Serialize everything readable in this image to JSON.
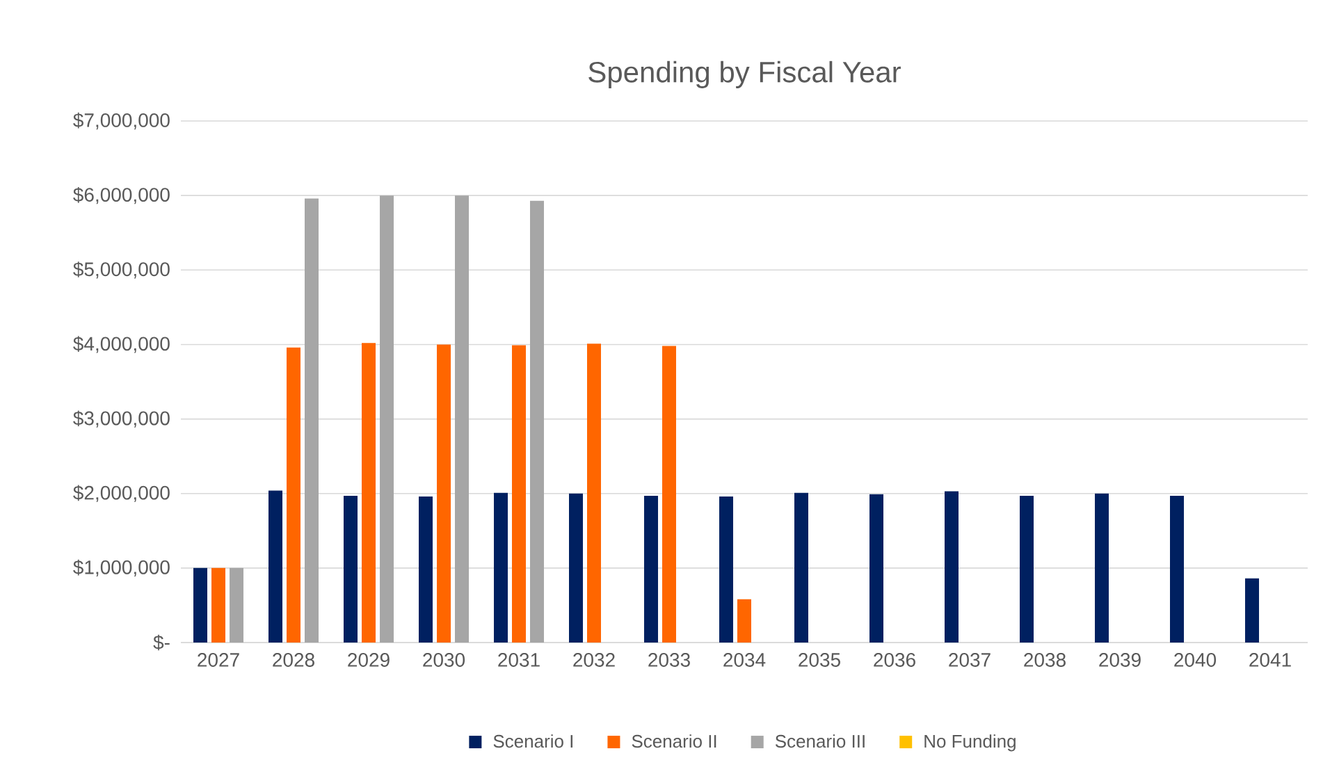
{
  "chart_data": {
    "type": "bar",
    "title": "Spending by Fiscal Year",
    "categories": [
      "2027",
      "2028",
      "2029",
      "2030",
      "2031",
      "2032",
      "2033",
      "2034",
      "2035",
      "2036",
      "2037",
      "2038",
      "2039",
      "2040",
      "2041"
    ],
    "series": [
      {
        "name": "Scenario I",
        "color": "#002060",
        "values": [
          1000000,
          2040000,
          1970000,
          1960000,
          2010000,
          2000000,
          1970000,
          1960000,
          2010000,
          1990000,
          2030000,
          1970000,
          2000000,
          1970000,
          860000
        ]
      },
      {
        "name": "Scenario II",
        "color": "#ff6600",
        "values": [
          1000000,
          3960000,
          4020000,
          4000000,
          3990000,
          4010000,
          3980000,
          580000,
          null,
          null,
          null,
          null,
          null,
          null,
          null
        ]
      },
      {
        "name": "Scenario III",
        "color": "#a6a6a6",
        "values": [
          1000000,
          5960000,
          6000000,
          6000000,
          5930000,
          null,
          null,
          null,
          null,
          null,
          null,
          null,
          null,
          null,
          null
        ]
      },
      {
        "name": "No Funding",
        "color": "#ffc000",
        "values": [
          null,
          null,
          null,
          null,
          null,
          null,
          null,
          null,
          null,
          null,
          null,
          null,
          null,
          null,
          null
        ]
      }
    ],
    "ylim": [
      0,
      7000000
    ],
    "yticks": [
      {
        "value": 0,
        "label": "$-"
      },
      {
        "value": 1000000,
        "label": "$1,000,000"
      },
      {
        "value": 2000000,
        "label": "$2,000,000"
      },
      {
        "value": 3000000,
        "label": "$3,000,000"
      },
      {
        "value": 4000000,
        "label": "$4,000,000"
      },
      {
        "value": 5000000,
        "label": "$5,000,000"
      },
      {
        "value": 6000000,
        "label": "$6,000,000"
      },
      {
        "value": 7000000,
        "label": "$7,000,000"
      }
    ],
    "grid": "y",
    "legend": "bottom"
  }
}
